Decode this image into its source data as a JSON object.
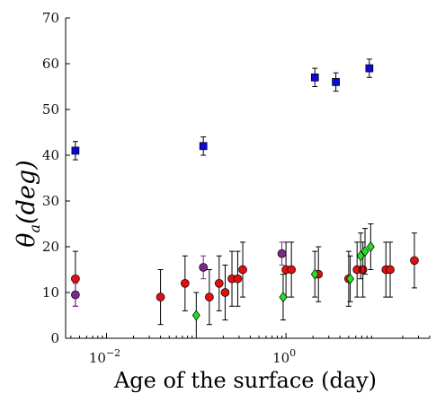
{
  "chart_data": {
    "type": "scatter",
    "title": "",
    "xlabel": "Age of the surface (day)",
    "ylabel_symbol": "θ",
    "ylabel_subscript": "a",
    "ylabel_unit": "(deg)",
    "xscale": "log",
    "xlim": [
      0.0035,
      40
    ],
    "ylim": [
      0,
      70
    ],
    "yticks": [
      0,
      10,
      20,
      30,
      40,
      50,
      60,
      70
    ],
    "xticks": [
      {
        "value": 0.01,
        "base": "10",
        "exp": "−2"
      },
      {
        "value": 1,
        "base": "10",
        "exp": "0"
      }
    ],
    "grid": false,
    "legend": "none",
    "series": [
      {
        "marker": "square",
        "color": "#0a0ad8",
        "points": [
          {
            "x": 0.0045,
            "y": 41,
            "err": 2
          },
          {
            "x": 0.12,
            "y": 42,
            "err": 2
          },
          {
            "x": 2.1,
            "y": 57,
            "err": 2
          },
          {
            "x": 3.6,
            "y": 56,
            "err": 2
          },
          {
            "x": 8.5,
            "y": 59,
            "err": 2
          }
        ]
      },
      {
        "marker": "circle",
        "color": "#e01010",
        "points": [
          {
            "x": 0.0045,
            "y": 13,
            "err": 6
          },
          {
            "x": 0.04,
            "y": 9,
            "err": 6
          },
          {
            "x": 0.075,
            "y": 12,
            "err": 6
          },
          {
            "x": 0.14,
            "y": 9,
            "err": 6
          },
          {
            "x": 0.18,
            "y": 12,
            "err": 6
          },
          {
            "x": 0.21,
            "y": 10,
            "err": 6
          },
          {
            "x": 0.25,
            "y": 13,
            "err": 6
          },
          {
            "x": 0.29,
            "y": 13,
            "err": 6
          },
          {
            "x": 0.33,
            "y": 15,
            "err": 6
          },
          {
            "x": 1.0,
            "y": 15,
            "err": 6
          },
          {
            "x": 1.15,
            "y": 15,
            "err": 6
          },
          {
            "x": 2.3,
            "y": 14,
            "err": 6
          },
          {
            "x": 5.0,
            "y": 13,
            "err": 6
          },
          {
            "x": 6.2,
            "y": 15,
            "err": 6
          },
          {
            "x": 7.2,
            "y": 15,
            "err": 6
          },
          {
            "x": 13,
            "y": 15,
            "err": 6
          },
          {
            "x": 14.5,
            "y": 15,
            "err": 6
          },
          {
            "x": 27,
            "y": 17,
            "err": 6
          }
        ]
      },
      {
        "marker": "circle",
        "color": "#7a2a8a",
        "errcolor": "#7a2a8a",
        "points": [
          {
            "x": 0.0045,
            "y": 9.5,
            "err": 2.5
          },
          {
            "x": 0.12,
            "y": 15.5,
            "err": 2.5
          },
          {
            "x": 0.9,
            "y": 18.5,
            "err": 2.5
          }
        ]
      },
      {
        "marker": "diamond",
        "color": "#22e022",
        "points": [
          {
            "x": 0.1,
            "y": 5,
            "err": 5
          },
          {
            "x": 0.93,
            "y": 9,
            "err": 5
          },
          {
            "x": 2.1,
            "y": 14,
            "err": 5
          },
          {
            "x": 5.2,
            "y": 13,
            "err": 5
          },
          {
            "x": 6.8,
            "y": 18,
            "err": 5
          },
          {
            "x": 7.6,
            "y": 19,
            "err": 5
          },
          {
            "x": 8.8,
            "y": 20,
            "err": 5
          }
        ]
      }
    ]
  }
}
